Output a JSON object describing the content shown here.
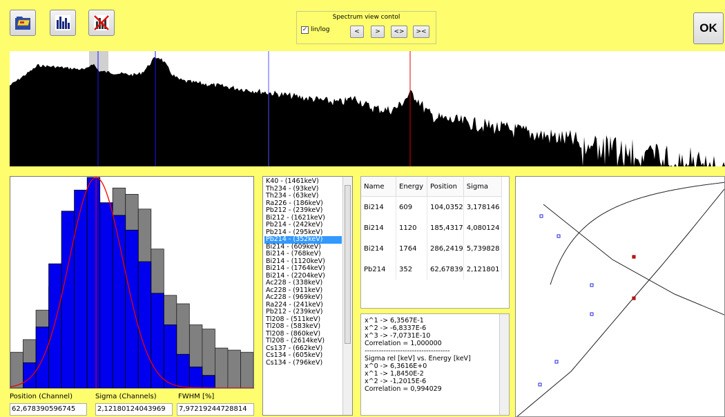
{
  "toolbar": {
    "icons": [
      "open-folder-icon",
      "spectrum-bars-icon",
      "clear-spectrum-icon"
    ]
  },
  "spectrum_view_control": {
    "title": "Spectrum view contol",
    "checkbox_label": "lin/log",
    "checkbox_checked": true,
    "buttons": [
      "<",
      ">",
      "<>",
      "><"
    ]
  },
  "ok_label": "OK",
  "fields": {
    "position_label": "Position (Channel)",
    "position_value": "62,678390596745",
    "sigma_label": "Sigma (Channels)",
    "sigma_value": "2,12180124043969",
    "fwhm_label": "FWHM [%]",
    "fwhm_value": "7,97219244728814"
  },
  "nuclide_list": [
    "K40 - (1461keV)",
    "Th234 - (93keV)",
    "Th234 - (63keV)",
    "Ra226 - (186keV)",
    "Pb212 - (239keV)",
    "Bi212 - (1621keV)",
    "Pb214 - (242keV)",
    "Pb214 - (295keV)",
    "Pb214 - (352keV)",
    "Bi214 - (609keV)",
    "Bi214 - (768keV)",
    "Bi214 - (1120keV)",
    "Bi214 - (1764keV)",
    "Bi214 - (2204keV)",
    "Ac228 - (338keV)",
    "Ac228 - (911keV)",
    "Ac228 - (969keV)",
    "Ra224 - (241keV)",
    "Pb212 - (239keV)",
    "Tl208 - (511keV)",
    "Tl208 - (583keV)",
    "Tl208 - (860keV)",
    "Tl208 - (2614keV)",
    "Cs137 - (662keV)",
    "Cs134 - (605keV)",
    "Cs134 - (796keV)"
  ],
  "nuclide_list_selected": "Pb214 - (352keV)",
  "nuclide_table": {
    "columns": [
      "Name",
      "Energy",
      "Position",
      "Sigma"
    ],
    "rows": [
      [
        "Bi214",
        "609",
        "104,0352",
        "3,178146"
      ],
      [
        "Bi214",
        "1120",
        "185,4317",
        "4,080124"
      ],
      [
        "Bi214",
        "1764",
        "286,2419",
        "5,739828"
      ],
      [
        "Pb214",
        "352",
        "62,67839",
        "2,121801"
      ]
    ]
  },
  "fit_log": [
    "x^1 -> 6,3567E-1",
    "x^2 -> -6,8337E-6",
    "x^3 -> -7,0731E-10",
    "Correlation = 1,000000",
    "------------------------------------",
    "Sigma rel [keV] vs. Energy [keV]",
    "x^0 -> 6,3616E+0",
    "x^1 -> 1,8450E-2",
    "x^2 -> -1,2015E-6",
    "Correlation = 0,994029"
  ],
  "colors": {
    "background": "#fdfd6e",
    "spectrum_fill": "#000000",
    "marker_blue": "#3a3aff",
    "marker_red": "#e00000",
    "histogram_measured": "#808080",
    "histogram_fit": "#0000ee",
    "gauss_curve": "#ee0000"
  },
  "peak_histogram": {
    "measured": [
      17,
      23,
      37,
      48,
      60,
      72,
      90,
      82,
      95,
      92,
      85,
      66,
      44,
      40,
      30,
      28,
      19,
      18,
      17
    ],
    "fitted": [
      0,
      12,
      29,
      59,
      84,
      94,
      100,
      88,
      82,
      75,
      60,
      45,
      30,
      16,
      10,
      6,
      0,
      0,
      0
    ]
  }
}
